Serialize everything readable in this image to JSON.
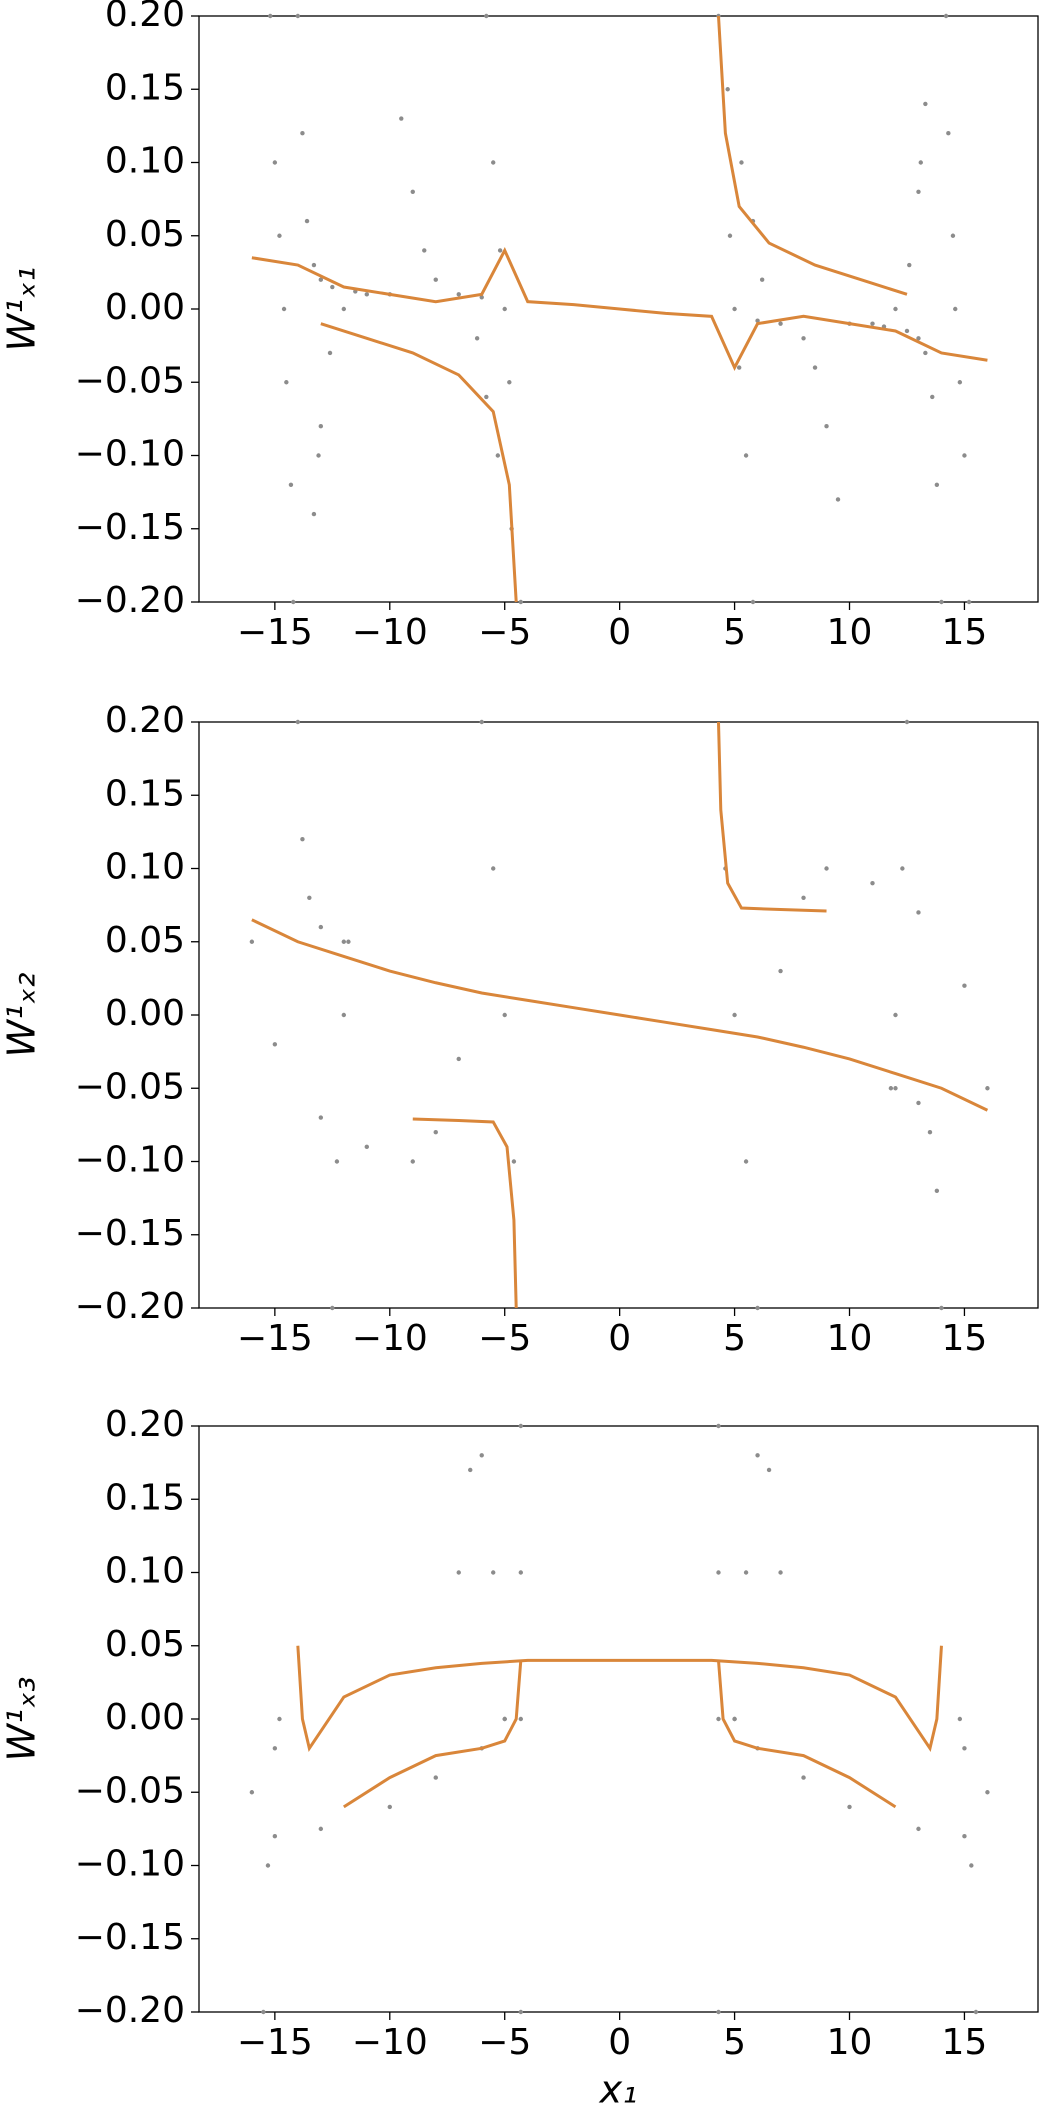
{
  "chart_data": [
    {
      "type": "scatter",
      "ylabel": "W¹ₓ₁",
      "xlim": [
        -18.3,
        18.2
      ],
      "ylim": [
        -0.2,
        0.2
      ],
      "xticks": [
        {
          "value": -15,
          "label": "−15"
        },
        {
          "value": -10,
          "label": "−10"
        },
        {
          "value": -5,
          "label": "−5"
        },
        0,
        5,
        10,
        15
      ],
      "yticks": [
        {
          "value": -0.2,
          "label": "−0.20"
        },
        {
          "value": -0.15,
          "label": "−0.15"
        },
        {
          "value": -0.1,
          "label": "−0.10"
        },
        {
          "value": -0.05,
          "label": "−0.05"
        },
        {
          "value": 0,
          "label": "0.00"
        },
        0.05,
        {
          "value": 0.1,
          "label": "0.10"
        },
        0.15,
        {
          "value": 0.2,
          "label": "0.20"
        }
      ],
      "series": [
        {
          "color": "#8c8c8c",
          "x": [
            -15.2,
            -15.0,
            -14.8,
            -14.6,
            -14.5,
            -14.3,
            -14.2
          ],
          "values": [
            0.2,
            0.1,
            0.05,
            0.0,
            -0.05,
            -0.12,
            -0.2
          ]
        },
        {
          "color": "#8c8c8c",
          "x": [
            -14,
            -13.8,
            -13.6,
            -13.3,
            -13.0,
            -12.5,
            -11.5,
            -10
          ],
          "values": [
            0.2,
            0.12,
            0.06,
            0.03,
            0.02,
            0.015,
            0.012,
            0.01
          ]
        },
        {
          "color": "#8c8c8c",
          "x": [
            -13.3,
            -13.1,
            -13.0,
            -12.6,
            -12,
            -11
          ],
          "values": [
            -0.14,
            -0.1,
            -0.08,
            -0.03,
            0,
            0.01
          ]
        },
        {
          "color": "#8c8c8c",
          "x": [
            -9.5,
            -9,
            -8.5,
            -8,
            -7,
            -6
          ],
          "values": [
            0.13,
            0.08,
            0.04,
            0.02,
            0.01,
            0.008
          ]
        },
        {
          "color": "#8c8c8c",
          "x": [
            -5.8,
            -5.5,
            -5.2,
            -5,
            -4.8
          ],
          "values": [
            0.2,
            0.1,
            0.04,
            0.0,
            -0.05
          ]
        },
        {
          "color": "#8c8c8c",
          "x": [
            -6.2,
            -5.8,
            -5.3,
            -4.7,
            -4.3
          ],
          "values": [
            -0.02,
            -0.06,
            -0.1,
            -0.15,
            -0.2
          ]
        },
        {
          "color": "#8c8c8c",
          "x": [
            15.2,
            15.0,
            14.8,
            14.6,
            14.5,
            14.3,
            14.2
          ],
          "values": [
            -0.2,
            -0.1,
            -0.05,
            0.0,
            0.05,
            0.12,
            0.2
          ]
        },
        {
          "color": "#8c8c8c",
          "x": [
            14,
            13.8,
            13.6,
            13.3,
            13.0,
            12.5,
            11.5,
            10
          ],
          "values": [
            -0.2,
            -0.12,
            -0.06,
            -0.03,
            -0.02,
            -0.015,
            -0.012,
            -0.01
          ]
        },
        {
          "color": "#8c8c8c",
          "x": [
            13.3,
            13.1,
            13.0,
            12.6,
            12,
            11
          ],
          "values": [
            0.14,
            0.1,
            0.08,
            0.03,
            0,
            -0.01
          ]
        },
        {
          "color": "#8c8c8c",
          "x": [
            9.5,
            9,
            8.5,
            8,
            7,
            6
          ],
          "values": [
            -0.13,
            -0.08,
            -0.04,
            -0.02,
            -0.01,
            -0.008
          ]
        },
        {
          "color": "#8c8c8c",
          "x": [
            5.8,
            5.5,
            5.2,
            5,
            4.8
          ],
          "values": [
            -0.2,
            -0.1,
            -0.04,
            0.0,
            0.05
          ]
        },
        {
          "color": "#8c8c8c",
          "x": [
            6.2,
            5.8,
            5.3,
            4.7,
            4.3
          ],
          "values": [
            0.02,
            0.06,
            0.1,
            0.15,
            0.2
          ]
        },
        {
          "color": "#d9863a",
          "line": true,
          "x": [
            -16,
            -14,
            -12,
            -10,
            -8,
            -6,
            -5,
            -4,
            -2,
            0,
            2,
            4,
            5,
            6,
            8,
            10,
            12,
            14,
            16
          ],
          "values": [
            0.035,
            0.03,
            0.015,
            0.01,
            0.005,
            0.01,
            0.04,
            0.005,
            0.003,
            0,
            -0.003,
            -0.005,
            -0.04,
            -0.01,
            -0.005,
            -0.01,
            -0.015,
            -0.03,
            -0.035
          ]
        },
        {
          "color": "#d9863a",
          "line": true,
          "x": [
            -4.5,
            -4.8,
            -5.5,
            -7,
            -9,
            -11,
            -13
          ],
          "values": [
            -0.2,
            -0.12,
            -0.07,
            -0.045,
            -0.03,
            -0.02,
            -0.01
          ]
        },
        {
          "color": "#d9863a",
          "line": true,
          "x": [
            4.3,
            4.6,
            5.2,
            6.5,
            8.5,
            10.5,
            12.5
          ],
          "values": [
            0.2,
            0.12,
            0.07,
            0.045,
            0.03,
            0.02,
            0.01
          ]
        }
      ]
    },
    {
      "type": "scatter",
      "ylabel": "W¹ₓ₂",
      "xlim": [
        -18.3,
        18.2
      ],
      "ylim": [
        -0.2,
        0.2
      ],
      "xticks": [
        {
          "value": -15,
          "label": "−15"
        },
        {
          "value": -10,
          "label": "−10"
        },
        {
          "value": -5,
          "label": "−5"
        },
        0,
        5,
        10,
        15
      ],
      "yticks": [
        {
          "value": -0.2,
          "label": "−0.20"
        },
        {
          "value": -0.15,
          "label": "−0.15"
        },
        {
          "value": -0.1,
          "label": "−0.10"
        },
        {
          "value": -0.05,
          "label": "−0.05"
        },
        {
          "value": 0,
          "label": "0.00"
        },
        0.05,
        {
          "value": 0.1,
          "label": "0.10"
        },
        0.15,
        {
          "value": 0.2,
          "label": "0.20"
        }
      ],
      "series": [
        {
          "color": "#8c8c8c",
          "x": [
            -16,
            -15,
            -13,
            -11,
            -9,
            -8,
            -7
          ],
          "values": [
            0.05,
            -0.02,
            -0.07,
            -0.09,
            -0.1,
            -0.08,
            -0.03
          ]
        },
        {
          "color": "#8c8c8c",
          "x": [
            16,
            15,
            13,
            11,
            9,
            8,
            7
          ],
          "values": [
            -0.05,
            0.02,
            0.07,
            0.09,
            0.1,
            0.08,
            0.03
          ]
        },
        {
          "color": "#8c8c8c",
          "x": [
            -14,
            -13.8,
            -13.5,
            -13,
            -12
          ],
          "values": [
            0.2,
            0.12,
            0.08,
            0.06,
            0.05
          ]
        },
        {
          "color": "#8c8c8c",
          "x": [
            -12.5,
            -12.3,
            -12,
            -11.8
          ],
          "values": [
            -0.2,
            -0.1,
            0.0,
            0.05
          ]
        },
        {
          "color": "#8c8c8c",
          "x": [
            -6,
            -5.5,
            -5,
            -4.6
          ],
          "values": [
            0.2,
            0.1,
            0.0,
            -0.1
          ]
        },
        {
          "color": "#8c8c8c",
          "x": [
            14,
            13.8,
            13.5,
            13,
            12
          ],
          "values": [
            -0.2,
            -0.12,
            -0.08,
            -0.06,
            -0.05
          ]
        },
        {
          "color": "#8c8c8c",
          "x": [
            12.5,
            12.3,
            12,
            11.8
          ],
          "values": [
            0.2,
            0.1,
            0.0,
            -0.05
          ]
        },
        {
          "color": "#8c8c8c",
          "x": [
            6,
            5.5,
            5,
            4.6
          ],
          "values": [
            -0.2,
            -0.1,
            0.0,
            0.1
          ]
        },
        {
          "color": "#d9863a",
          "line": true,
          "x": [
            -16,
            -14,
            -12,
            -10,
            -8,
            -6,
            -4,
            -2,
            0,
            2,
            4,
            6,
            8,
            10,
            12,
            14,
            16
          ],
          "values": [
            0.065,
            0.05,
            0.04,
            0.03,
            0.022,
            0.015,
            0.01,
            0.005,
            0,
            -0.005,
            -0.01,
            -0.015,
            -0.022,
            -0.03,
            -0.04,
            -0.05,
            -0.065
          ]
        },
        {
          "color": "#d9863a",
          "line": true,
          "x": [
            -4.5,
            -4.6,
            -4.9,
            -5.5,
            -7,
            -9
          ],
          "values": [
            -0.2,
            -0.14,
            -0.09,
            -0.073,
            -0.072,
            -0.071
          ]
        },
        {
          "color": "#d9863a",
          "line": true,
          "x": [
            4.3,
            4.4,
            4.7,
            5.3,
            7,
            9
          ],
          "values": [
            0.2,
            0.14,
            0.09,
            0.073,
            0.072,
            0.071
          ]
        }
      ]
    },
    {
      "type": "scatter",
      "ylabel": "W¹ₓ₃",
      "xlabel": "x₁",
      "xlim": [
        -18.3,
        18.2
      ],
      "ylim": [
        -0.2,
        0.2
      ],
      "xticks": [
        {
          "value": -15,
          "label": "−15"
        },
        {
          "value": -10,
          "label": "−10"
        },
        {
          "value": -5,
          "label": "−5"
        },
        0,
        5,
        10,
        15
      ],
      "yticks": [
        {
          "value": -0.2,
          "label": "−0.20"
        },
        {
          "value": -0.15,
          "label": "−0.15"
        },
        {
          "value": -0.1,
          "label": "−0.10"
        },
        {
          "value": -0.05,
          "label": "−0.05"
        },
        {
          "value": 0,
          "label": "0.00"
        },
        0.05,
        {
          "value": 0.1,
          "label": "0.10"
        },
        0.15,
        {
          "value": 0.2,
          "label": "0.20"
        }
      ],
      "series": [
        {
          "color": "#8c8c8c",
          "x": [
            -16,
            -15,
            -13,
            -10,
            -8,
            -6,
            -5
          ],
          "values": [
            -0.05,
            -0.08,
            -0.075,
            -0.06,
            -0.04,
            -0.02,
            0.0
          ]
        },
        {
          "color": "#8c8c8c",
          "x": [
            -7,
            -6.5,
            -6,
            -5.5,
            -5
          ],
          "values": [
            0.1,
            0.17,
            0.18,
            0.1,
            0.0
          ]
        },
        {
          "color": "#8c8c8c",
          "x": [
            -15.5,
            -15.3,
            -15,
            -14.8
          ],
          "values": [
            -0.2,
            -0.1,
            -0.02,
            0.0
          ]
        },
        {
          "color": "#8c8c8c",
          "x": [
            -4.3,
            -4.3,
            -4.3,
            -4.3
          ],
          "values": [
            -0.2,
            0.0,
            0.1,
            0.2
          ]
        },
        {
          "color": "#8c8c8c",
          "x": [
            16,
            15,
            13,
            10,
            8,
            6,
            5
          ],
          "values": [
            -0.05,
            -0.08,
            -0.075,
            -0.06,
            -0.04,
            -0.02,
            0.0
          ]
        },
        {
          "color": "#8c8c8c",
          "x": [
            7,
            6.5,
            6,
            5.5,
            5
          ],
          "values": [
            0.1,
            0.17,
            0.18,
            0.1,
            0.0
          ]
        },
        {
          "color": "#8c8c8c",
          "x": [
            15.5,
            15.3,
            15,
            14.8
          ],
          "values": [
            -0.2,
            -0.1,
            -0.02,
            0.0
          ]
        },
        {
          "color": "#8c8c8c",
          "x": [
            4.3,
            4.3,
            4.3,
            4.3
          ],
          "values": [
            -0.2,
            0.0,
            0.1,
            0.2
          ]
        },
        {
          "color": "#d9863a",
          "line": true,
          "x": [
            -14,
            -13.8,
            -13.5,
            -12,
            -10,
            -8,
            -6,
            -4,
            -2,
            0,
            2,
            4,
            6,
            8,
            10,
            12,
            13.5,
            13.8,
            14
          ],
          "values": [
            0.05,
            0.0,
            -0.02,
            0.015,
            0.03,
            0.035,
            0.038,
            0.04,
            0.04,
            0.04,
            0.04,
            0.04,
            0.038,
            0.035,
            0.03,
            0.015,
            -0.02,
            0.0,
            0.05
          ]
        },
        {
          "color": "#d9863a",
          "line": true,
          "x": [
            -12,
            -10,
            -8,
            -6,
            -5,
            -4.5,
            -4.3
          ],
          "values": [
            -0.06,
            -0.04,
            -0.025,
            -0.02,
            -0.015,
            0.0,
            0.04
          ]
        },
        {
          "color": "#d9863a",
          "line": true,
          "x": [
            12,
            10,
            8,
            6,
            5,
            4.5,
            4.3
          ],
          "values": [
            -0.06,
            -0.04,
            -0.025,
            -0.02,
            -0.015,
            0.0,
            0.04
          ]
        }
      ]
    }
  ]
}
